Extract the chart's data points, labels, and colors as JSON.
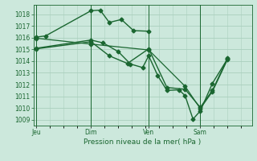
{
  "title": "Pression niveau de la mer( hPa )",
  "bg_color": "#cce8dc",
  "grid_color": "#aacfbe",
  "line_color": "#1a6630",
  "ylim": [
    1008.5,
    1018.8
  ],
  "yticks": [
    1009,
    1010,
    1011,
    1012,
    1013,
    1014,
    1015,
    1016,
    1017,
    1018
  ],
  "xlim": [
    -0.05,
    3.55
  ],
  "xtick_labels": [
    "Jeu",
    "Dim",
    "Ven",
    "Sam"
  ],
  "xtick_positions": [
    0.0,
    0.9,
    1.85,
    2.7
  ],
  "x_vlines": [
    0.0,
    0.9,
    1.85,
    2.7
  ],
  "lines": [
    {
      "x": [
        0.0,
        0.15,
        0.9,
        1.05,
        1.2,
        1.4,
        1.6,
        1.85
      ],
      "y": [
        1016.05,
        1016.15,
        1018.3,
        1018.35,
        1017.3,
        1017.55,
        1016.6,
        1016.55
      ],
      "marker": "D",
      "markersize": 2.5,
      "linewidth": 1.0
    },
    {
      "x": [
        0.0,
        0.9,
        1.1,
        1.35,
        1.55,
        1.75,
        1.85,
        2.0,
        2.15,
        2.35,
        2.45,
        2.58,
        2.7,
        2.9,
        3.15
      ],
      "y": [
        1015.1,
        1015.8,
        1015.55,
        1014.8,
        1013.75,
        1013.45,
        1014.45,
        1012.75,
        1011.5,
        1011.55,
        1011.05,
        1009.05,
        1009.75,
        1012.1,
        1014.2
      ],
      "marker": "D",
      "markersize": 2.5,
      "linewidth": 1.0
    },
    {
      "x": [
        0.0,
        0.9,
        1.2,
        1.5,
        1.85,
        2.15,
        2.45,
        2.7,
        2.9,
        3.15
      ],
      "y": [
        1015.05,
        1015.65,
        1014.45,
        1013.8,
        1015.05,
        1011.75,
        1011.6,
        1010.05,
        1011.5,
        1014.25
      ],
      "marker": "D",
      "markersize": 2.5,
      "linewidth": 1.0
    },
    {
      "x": [
        0.0,
        0.9,
        1.85,
        2.45,
        2.7,
        2.9,
        3.15
      ],
      "y": [
        1015.95,
        1015.45,
        1014.95,
        1011.85,
        1009.95,
        1011.4,
        1014.15
      ],
      "marker": "D",
      "markersize": 2.5,
      "linewidth": 0.9
    }
  ]
}
